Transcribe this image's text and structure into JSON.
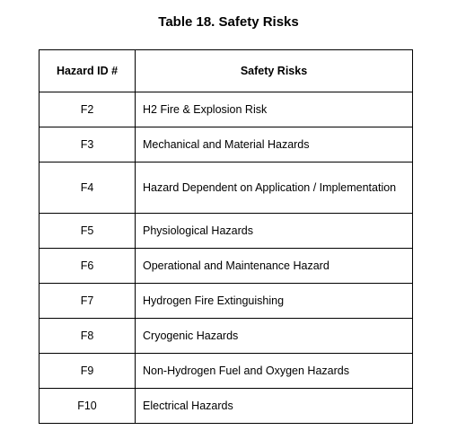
{
  "title": "Table 18. Safety Risks",
  "table": {
    "headers": [
      "Hazard ID #",
      "Safety Risks"
    ],
    "rows": [
      {
        "id": "F2",
        "risk": "H2 Fire & Explosion Risk"
      },
      {
        "id": "F3",
        "risk": "Mechanical and Material Hazards"
      },
      {
        "id": "F4",
        "risk": "Hazard Dependent on Application / Implementation"
      },
      {
        "id": "F5",
        "risk": "Physiological Hazards"
      },
      {
        "id": "F6",
        "risk": "Operational and Maintenance Hazard"
      },
      {
        "id": "F7",
        "risk": "Hydrogen Fire Extinguishing"
      },
      {
        "id": "F8",
        "risk": "Cryogenic Hazards"
      },
      {
        "id": "F9",
        "risk": "Non-Hydrogen Fuel and Oxygen Hazards"
      },
      {
        "id": "F10",
        "risk": "Electrical Hazards"
      }
    ]
  }
}
